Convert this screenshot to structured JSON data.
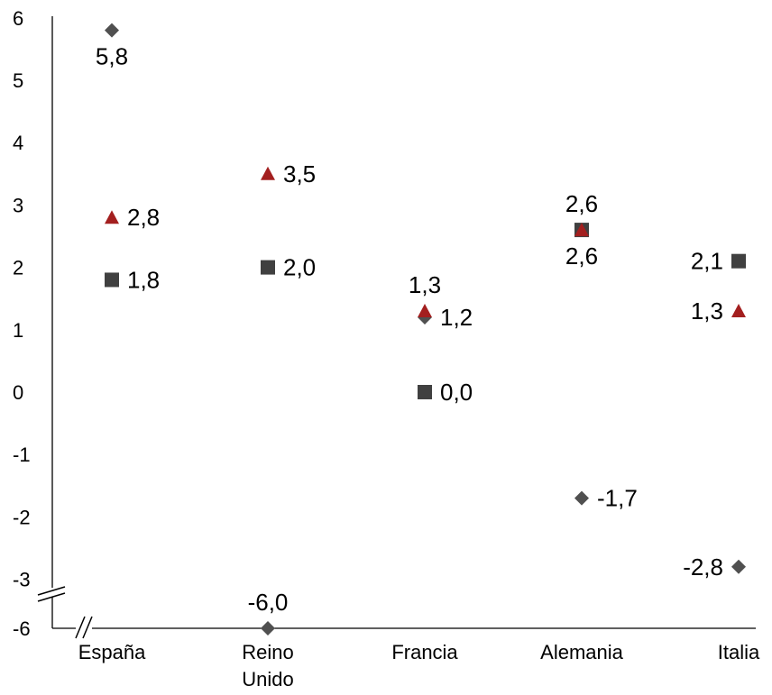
{
  "chart_data": {
    "type": "scatter",
    "categories": [
      "España",
      [
        "Reino",
        "Unido"
      ],
      "Francia",
      "Alemania",
      "Italia"
    ],
    "y_ticks": [
      "6",
      "5",
      "4",
      "3",
      "2",
      "1",
      "0",
      "-1",
      "-2",
      "-3",
      "-6"
    ],
    "axis_break": {
      "lower": -6,
      "upper": -3
    },
    "ylim": [
      -6,
      6
    ],
    "grid": false,
    "legend": "none",
    "series": [
      {
        "marker": "diamond",
        "color": "#505050",
        "values": [
          5.8,
          -6.0,
          1.2,
          -1.7,
          -2.8
        ],
        "labels": [
          "5,8",
          "-6,0",
          "1,2",
          "-1,7",
          "-2,8"
        ],
        "label_pos": [
          "below",
          "above",
          "right",
          "right",
          "left"
        ]
      },
      {
        "marker": "square",
        "color": "#404040",
        "values": [
          1.8,
          2.0,
          0.0,
          2.6,
          2.1
        ],
        "labels": [
          "1,8",
          "2,0",
          "0,0",
          "2,6",
          "2,1"
        ],
        "label_pos": [
          "right",
          "right",
          "right",
          "above",
          "left"
        ]
      },
      {
        "marker": "triangle",
        "color": "#a31f1f",
        "values": [
          2.8,
          3.5,
          1.3,
          2.6,
          1.3
        ],
        "labels": [
          "2,8",
          "3,5",
          "1,3",
          "2,6",
          "1,3"
        ],
        "label_pos": [
          "right",
          "right",
          "above",
          "below",
          "left"
        ]
      }
    ]
  }
}
